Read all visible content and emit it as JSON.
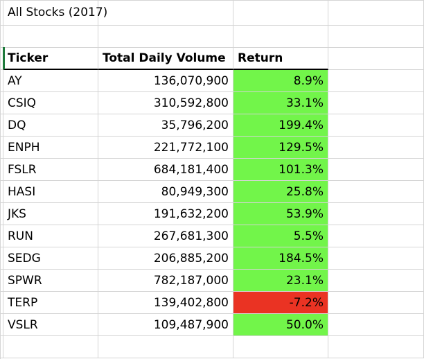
{
  "sheet": {
    "title": "All Stocks (2017)",
    "headers": {
      "ticker": "Ticker",
      "volume": "Total Daily Volume",
      "return": "Return"
    },
    "rows": [
      {
        "ticker": "AY",
        "volume": "136,070,900",
        "return": "8.9%",
        "status": "positive"
      },
      {
        "ticker": "CSIQ",
        "volume": "310,592,800",
        "return": "33.1%",
        "status": "positive"
      },
      {
        "ticker": "DQ",
        "volume": "35,796,200",
        "return": "199.4%",
        "status": "positive"
      },
      {
        "ticker": "ENPH",
        "volume": "221,772,100",
        "return": "129.5%",
        "status": "positive"
      },
      {
        "ticker": "FSLR",
        "volume": "684,181,400",
        "return": "101.3%",
        "status": "positive"
      },
      {
        "ticker": "HASI",
        "volume": "80,949,300",
        "return": "25.8%",
        "status": "positive"
      },
      {
        "ticker": "JKS",
        "volume": "191,632,200",
        "return": "53.9%",
        "status": "positive"
      },
      {
        "ticker": "RUN",
        "volume": "267,681,300",
        "return": "5.5%",
        "status": "positive"
      },
      {
        "ticker": "SEDG",
        "volume": "206,885,200",
        "return": "184.5%",
        "status": "positive"
      },
      {
        "ticker": "SPWR",
        "volume": "782,187,000",
        "return": "23.1%",
        "status": "positive"
      },
      {
        "ticker": "TERP",
        "volume": "139,402,800",
        "return": "-7.2%",
        "status": "negative"
      },
      {
        "ticker": "VSLR",
        "volume": "109,487,900",
        "return": "50.0%",
        "status": "positive"
      }
    ],
    "colors": {
      "positive": "#72f54a",
      "negative": "#ea3323",
      "gridline": "#d4d4d4"
    }
  }
}
